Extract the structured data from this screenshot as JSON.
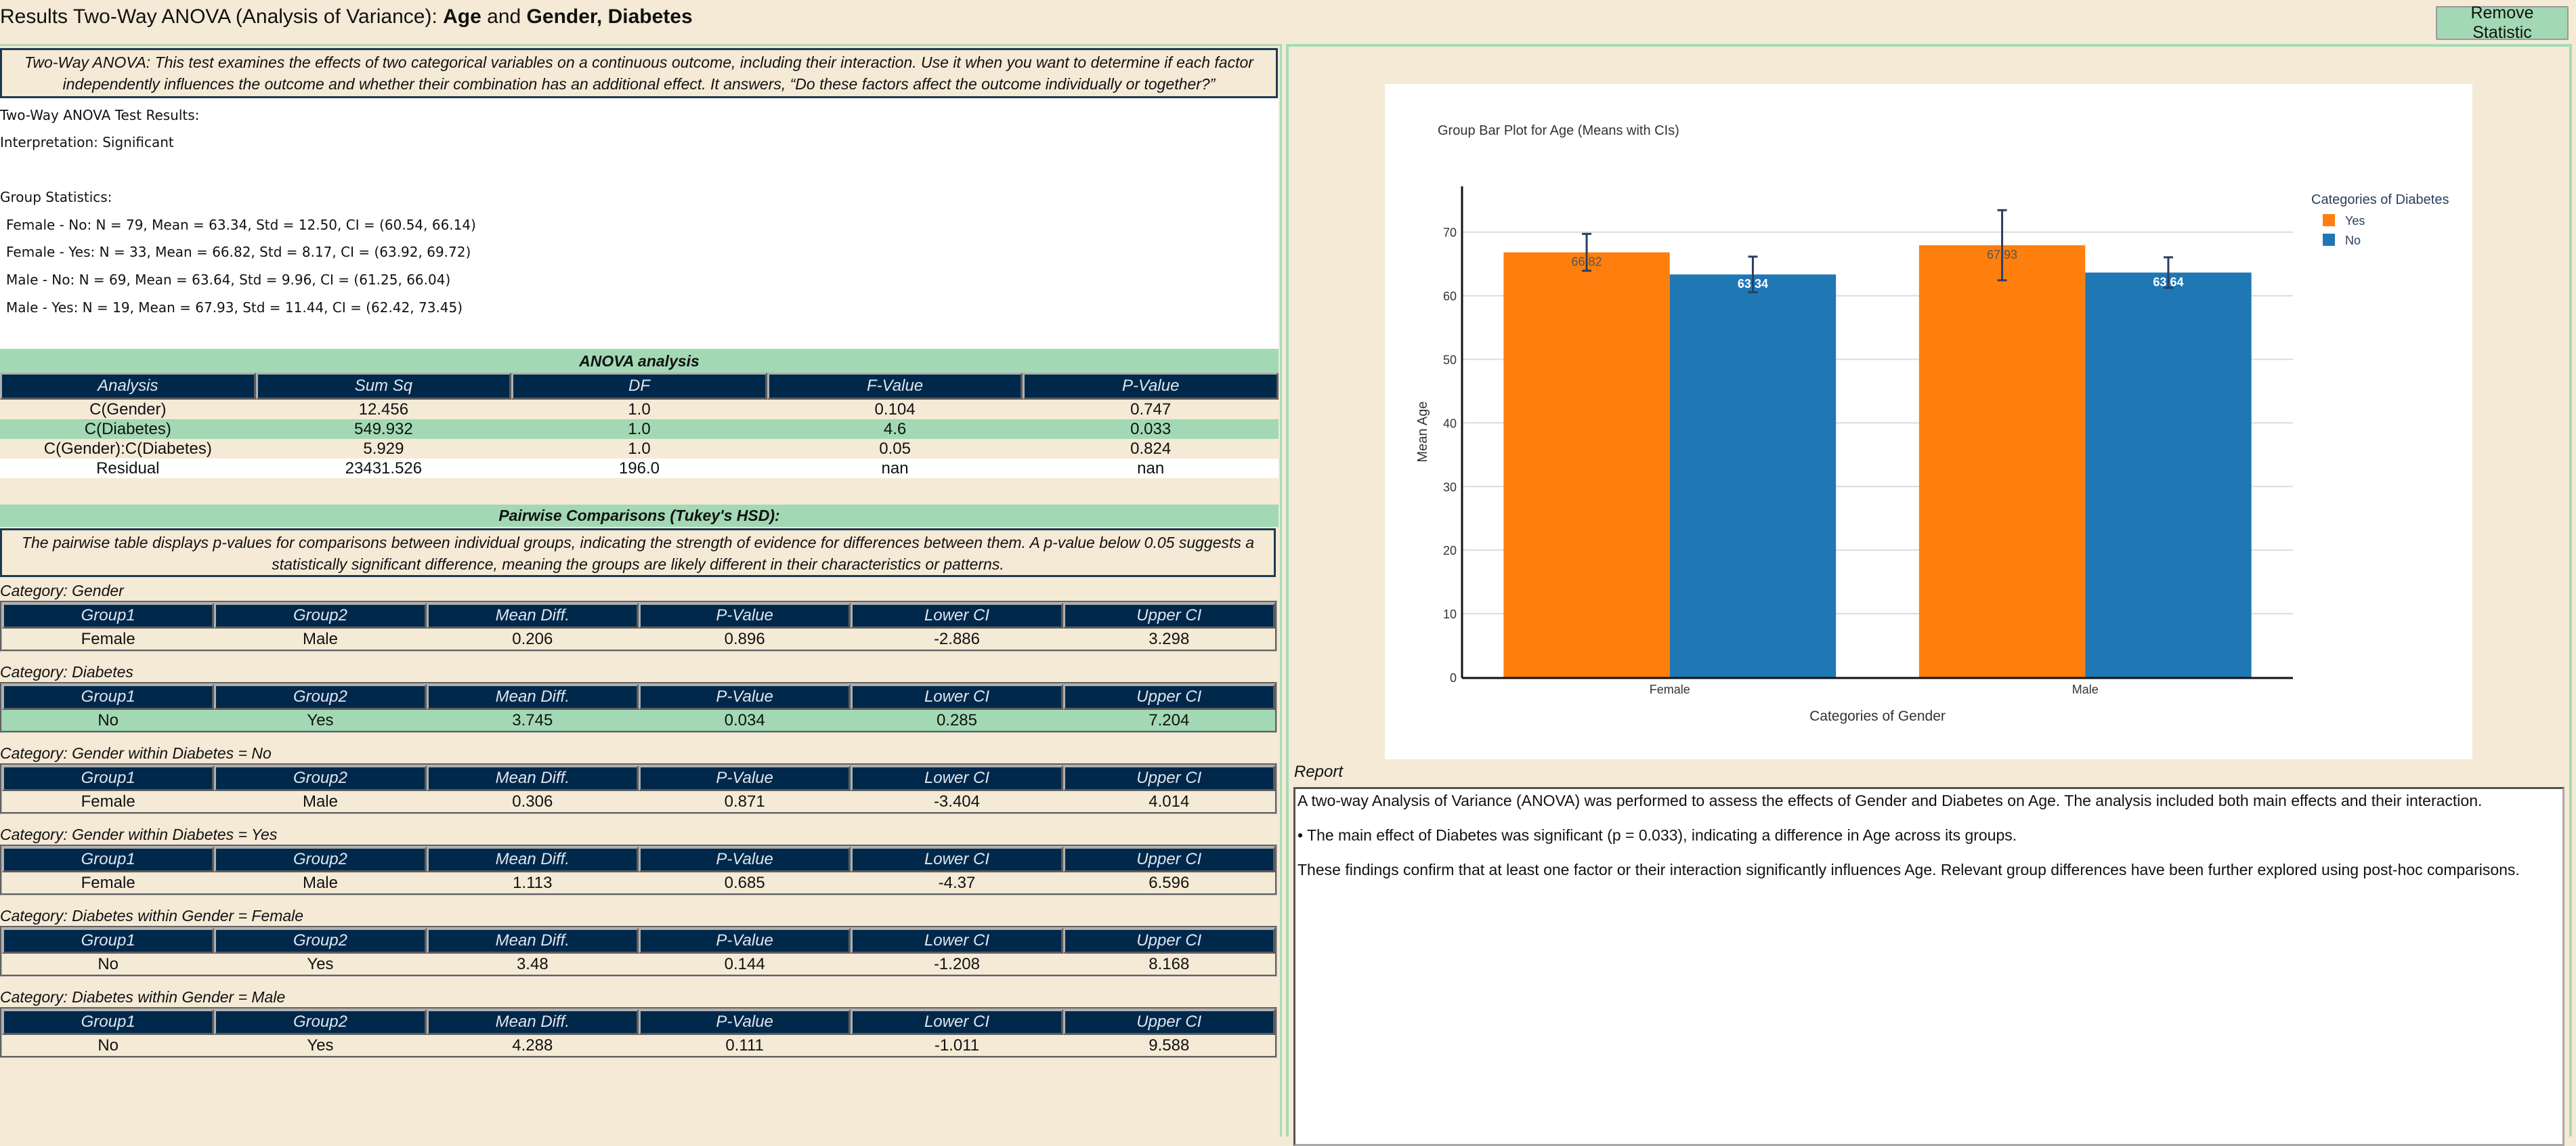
{
  "header": {
    "title_prefix": "Results Two-Way ANOVA (Analysis of Variance): ",
    "outcome": "Age",
    "and_word": " and ",
    "factors": "Gender, Diabetes",
    "remove_button": "Remove Statistic"
  },
  "description": "Two-Way ANOVA: This test examines the effects of two categorical variables on a continuous outcome, including their interaction. Use it when you want to determine if each factor independently influences the outcome and whether their combination has an additional effect. It answers, “Do these factors affect the outcome individually or together?”",
  "results": {
    "heading": "Two-Way ANOVA Test Results:",
    "interpretation": "Interpretation: Significant",
    "group_stats_heading": "Group Statistics:",
    "group_stats": [
      "Female - No: N = 79, Mean = 63.34, Std = 12.50, CI = (60.54, 66.14)",
      "Female - Yes: N = 33, Mean = 66.82, Std = 8.17, CI = (63.92, 69.72)",
      "Male - No: N = 69, Mean = 63.64, Std = 9.96, CI = (61.25, 66.04)",
      "Male - Yes: N = 19, Mean = 67.93, Std = 11.44, CI = (62.42, 73.45)"
    ]
  },
  "anova": {
    "title": "ANOVA analysis",
    "columns": [
      "Analysis",
      "Sum Sq",
      "DF",
      "F-Value",
      "P-Value"
    ],
    "rows": [
      {
        "cells": [
          "C(Gender)",
          "12.456",
          "1.0",
          "0.104",
          "0.747"
        ],
        "style": "beige"
      },
      {
        "cells": [
          "C(Diabetes)",
          "549.932",
          "1.0",
          "4.6",
          "0.033"
        ],
        "style": "green"
      },
      {
        "cells": [
          "C(Gender):C(Diabetes)",
          "5.929",
          "1.0",
          "0.05",
          "0.824"
        ],
        "style": "beige"
      },
      {
        "cells": [
          "Residual",
          "23431.526",
          "196.0",
          "nan",
          "nan"
        ],
        "style": "white"
      }
    ]
  },
  "pairwise": {
    "title": "Pairwise Comparisons (Tukey's HSD):",
    "description": "The pairwise table displays p-values for comparisons between individual groups, indicating the strength of evidence for differences between them. A p-value below 0.05 suggests a statistically significant difference, meaning the groups are likely different in their characteristics or patterns.",
    "columns": [
      "Group1",
      "Group2",
      "Mean Diff.",
      "P-Value",
      "Lower CI",
      "Upper CI"
    ],
    "sections": [
      {
        "category": "Category: Gender",
        "row": [
          "Female",
          "Male",
          "0.206",
          "0.896",
          "-2.886",
          "3.298"
        ],
        "style": "beige"
      },
      {
        "category": "Category: Diabetes",
        "row": [
          "No",
          "Yes",
          "3.745",
          "0.034",
          "0.285",
          "7.204"
        ],
        "style": "green"
      },
      {
        "category": "Category: Gender within Diabetes = No",
        "row": [
          "Female",
          "Male",
          "0.306",
          "0.871",
          "-3.404",
          "4.014"
        ],
        "style": "beige"
      },
      {
        "category": "Category: Gender within Diabetes = Yes",
        "row": [
          "Female",
          "Male",
          "1.113",
          "0.685",
          "-4.37",
          "6.596"
        ],
        "style": "beige"
      },
      {
        "category": "Category: Diabetes within Gender = Female",
        "row": [
          "No",
          "Yes",
          "3.48",
          "0.144",
          "-1.208",
          "8.168"
        ],
        "style": "beige"
      },
      {
        "category": "Category: Diabetes within Gender = Male",
        "row": [
          "No",
          "Yes",
          "4.288",
          "0.111",
          "-1.011",
          "9.588"
        ],
        "style": "beige"
      }
    ]
  },
  "chart_data": {
    "type": "bar",
    "title": "Group Bar Plot for Age (Means with CIs)",
    "xlabel": "Categories of Gender",
    "ylabel": "Mean Age",
    "categories": [
      "Female",
      "Male"
    ],
    "ylim": [
      0,
      77.2
    ],
    "yticks": [
      0,
      10,
      20,
      30,
      40,
      50,
      60,
      70
    ],
    "grid": true,
    "legend": {
      "title": "Categories of  Diabetes",
      "position": "top-right"
    },
    "series": [
      {
        "name": "Yes",
        "color": "#ff7f0e",
        "values": [
          66.82,
          67.93
        ],
        "labels": [
          "66.82",
          "67.93"
        ],
        "ci_low": [
          63.92,
          62.42
        ],
        "ci_high": [
          69.72,
          73.45
        ]
      },
      {
        "name": "No",
        "color": "#1f77b4",
        "values": [
          63.34,
          63.64
        ],
        "labels": [
          "63.34",
          "63.64"
        ],
        "ci_low": [
          60.54,
          61.25
        ],
        "ci_high": [
          66.14,
          66.04
        ]
      }
    ]
  },
  "report": {
    "label": "Report",
    "paragraphs": [
      "A two-way Analysis of Variance (ANOVA) was performed to assess the effects of Gender and Diabetes on Age. The analysis included both main effects and their interaction.",
      "• The main effect of Diabetes was significant (p = 0.033), indicating a difference in Age across its groups.",
      "These findings confirm that at least one factor or their interaction significantly influences Age. Relevant group differences have been further explored using post-hoc comparisons."
    ]
  },
  "colors": {
    "background": "#f5ead6",
    "accent_green": "#a2d9b4",
    "header_navy": "#00284b",
    "yes": "#ff7f0e",
    "no": "#1f77b4"
  }
}
